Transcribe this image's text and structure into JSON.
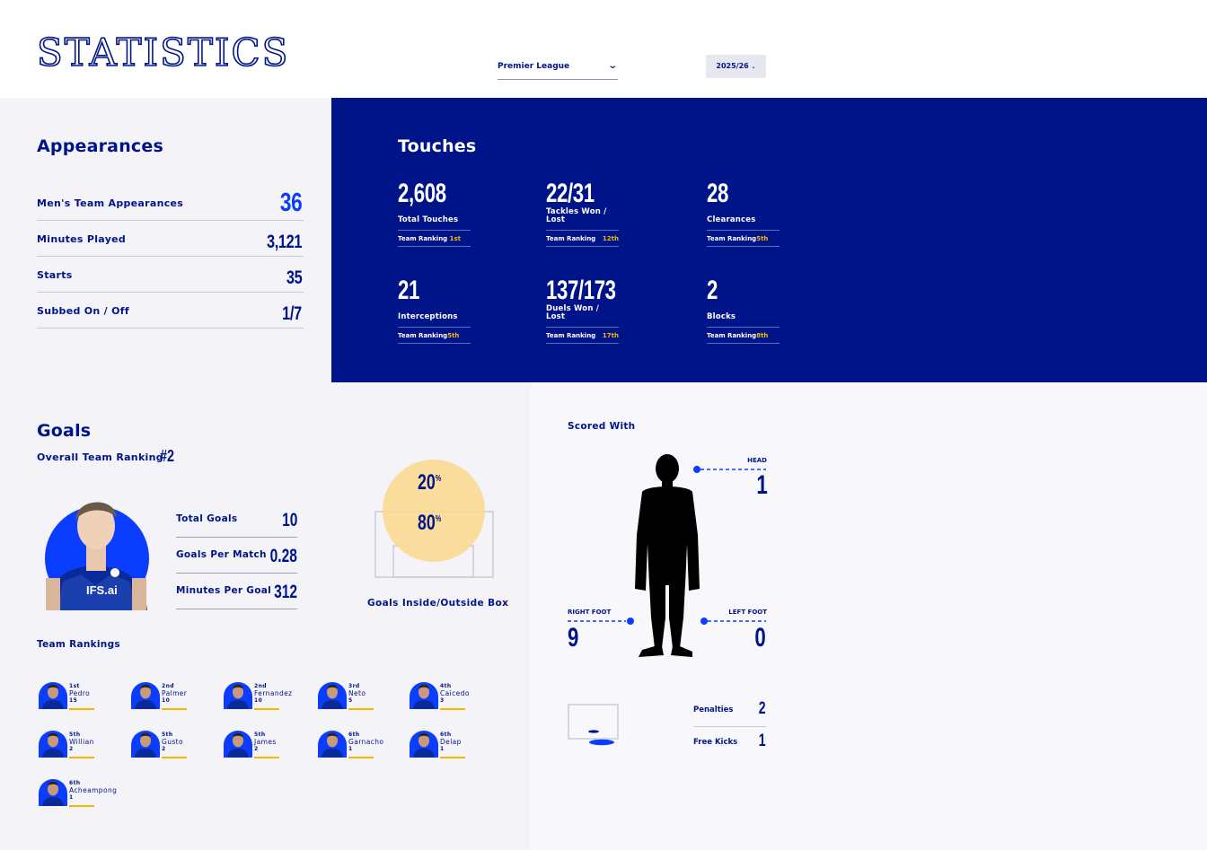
{
  "header": {
    "title": "STATISTICS",
    "competition": "Premier League",
    "season": "2025/26"
  },
  "appearances": {
    "title": "Appearances",
    "rows": [
      {
        "label": "Men's Team Appearances",
        "value": "36"
      },
      {
        "label": "Minutes Played",
        "value": "3,121"
      },
      {
        "label": "Starts",
        "value": "35"
      },
      {
        "label": "Subbed On / Off",
        "value": "1/7"
      }
    ]
  },
  "touches": {
    "title": "Touches",
    "ranking_label": "Team Ranking",
    "cells": [
      {
        "value": "2,608",
        "label": "Total Touches",
        "rank": "1st"
      },
      {
        "value": "22/31",
        "label": "Tackles Won / Lost",
        "rank": "12th"
      },
      {
        "value": "28",
        "label": "Clearances",
        "rank": "5th"
      },
      {
        "value": "21",
        "label": "Interceptions",
        "rank": "5th"
      },
      {
        "value": "137/173",
        "label": "Duels Won / Lost",
        "rank": "17th"
      },
      {
        "value": "2",
        "label": "Blocks",
        "rank": "8th"
      }
    ]
  },
  "goals": {
    "title": "Goals",
    "overall_label": "Overall Team Ranking",
    "overall_value": "#2",
    "rows": [
      {
        "label": "Total Goals",
        "value": "10"
      },
      {
        "label": "Goals Per Match",
        "value": "0.28"
      },
      {
        "label": "Minutes Per Goal",
        "value": "312"
      }
    ],
    "box": {
      "outside_pct": "20",
      "inside_pct": "80",
      "pct_sign": "%",
      "label": "Goals Inside/Outside Box"
    },
    "rankings_title": "Team Rankings",
    "rankings": [
      {
        "pos": "1st",
        "name": "Pedro",
        "count": "15"
      },
      {
        "pos": "2nd",
        "name": "Palmer",
        "count": "10"
      },
      {
        "pos": "2nd",
        "name": "Fernandez",
        "count": "10"
      },
      {
        "pos": "3rd",
        "name": "Neto",
        "count": "5"
      },
      {
        "pos": "4th",
        "name": "Caicedo",
        "count": "3"
      },
      {
        "pos": "5th",
        "name": "Willian",
        "count": "2"
      },
      {
        "pos": "5th",
        "name": "Gusto",
        "count": "2"
      },
      {
        "pos": "5th",
        "name": "James",
        "count": "2"
      },
      {
        "pos": "6th",
        "name": "Garnacho",
        "count": "1"
      },
      {
        "pos": "6th",
        "name": "Delap",
        "count": "1"
      },
      {
        "pos": "6th",
        "name": "Acheampong",
        "count": "1"
      }
    ]
  },
  "scored_with": {
    "title": "Scored With",
    "head_label": "HEAD",
    "head_value": "1",
    "right_foot_label": "RIGHT FOOT",
    "right_foot_value": "9",
    "left_foot_label": "LEFT FOOT",
    "left_foot_value": "0",
    "set_pieces": [
      {
        "label": "Penalties",
        "value": "2"
      },
      {
        "label": "Free Kicks",
        "value": "1"
      }
    ]
  },
  "colors": {
    "navy": "#001489",
    "accent_blue": "#0b3dff",
    "gold": "#f2b900",
    "box_circle": "#fbd98f"
  }
}
